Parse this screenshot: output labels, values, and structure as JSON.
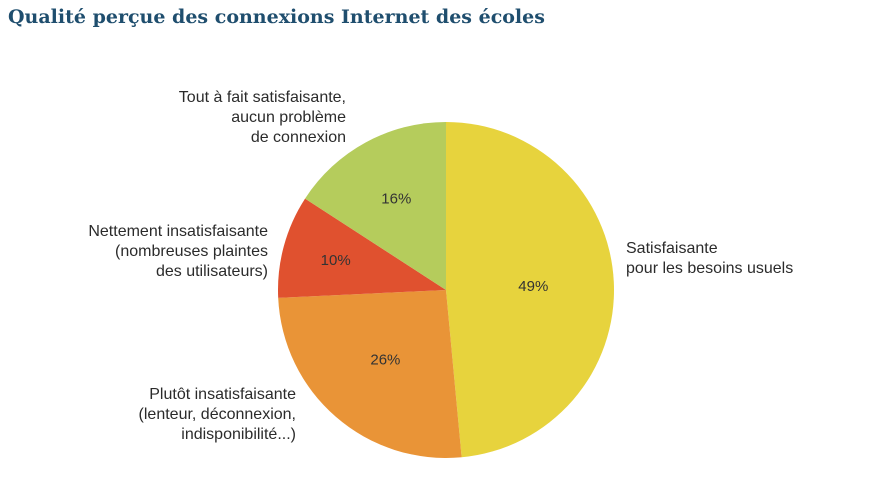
{
  "chart_data": {
    "type": "pie",
    "title": "Qualité perçue des connexions Internet des écoles",
    "slices": [
      {
        "label": [
          "Satisfaisante",
          "pour les besoins usuels"
        ],
        "value": 49,
        "value_label": "49%",
        "color": "#e7d33d"
      },
      {
        "label": [
          "Plutôt insatisfaisante",
          "(lenteur, déconnexion,",
          "indisponibilité...)"
        ],
        "value": 26,
        "value_label": "26%",
        "color": "#e99437"
      },
      {
        "label": [
          "Nettement insatisfaisante",
          "(nombreuses plaintes",
          "des utilisateurs)"
        ],
        "value": 10,
        "value_label": "10%",
        "color": "#e0512f"
      },
      {
        "label": [
          "Tout à fait satisfaisante,",
          "aucun problème",
          "de connexion"
        ],
        "value": 16,
        "value_label": "16%",
        "color": "#b5cc5c"
      }
    ]
  }
}
